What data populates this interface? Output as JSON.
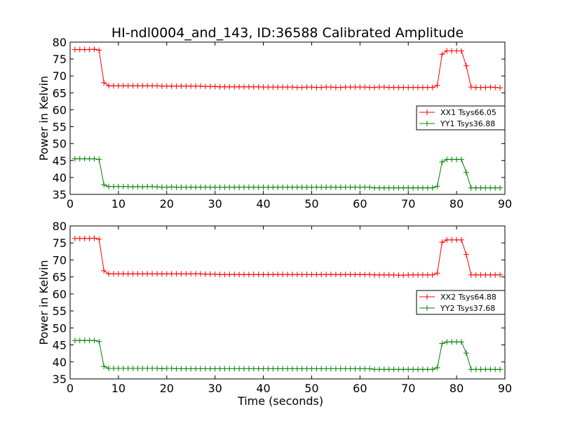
{
  "chart_data": {
    "title": "HI-ndl0004_and_143, ID:36588 Calibrated Amplitude",
    "charts": [
      {
        "type": "line",
        "ylabel": "Power in Kelvin",
        "xlabel": "",
        "xlim": [
          0,
          90
        ],
        "ylim": [
          35,
          80
        ],
        "xticks": [
          0,
          10,
          20,
          30,
          40,
          50,
          60,
          70,
          80,
          90
        ],
        "yticks": [
          35,
          40,
          45,
          50,
          55,
          60,
          65,
          70,
          75,
          80
        ],
        "grid": false,
        "legend": "center-right",
        "series": [
          {
            "name": "XX1 Tsys66.05",
            "color": "#ff0000",
            "x": [
              1,
              2,
              3,
              4,
              5,
              6,
              7,
              8,
              9,
              10,
              11,
              12,
              13,
              14,
              15,
              16,
              17,
              18,
              19,
              20,
              21,
              22,
              23,
              24,
              25,
              26,
              27,
              28,
              29,
              30,
              31,
              32,
              33,
              34,
              35,
              36,
              37,
              38,
              39,
              40,
              41,
              42,
              43,
              44,
              45,
              46,
              47,
              48,
              49,
              50,
              51,
              52,
              53,
              54,
              55,
              56,
              57,
              58,
              59,
              60,
              61,
              62,
              63,
              64,
              65,
              66,
              67,
              68,
              69,
              70,
              71,
              72,
              73,
              74,
              75,
              76,
              77,
              78,
              79,
              80,
              81,
              82,
              83,
              84,
              85,
              86,
              87,
              88,
              89
            ],
            "y": [
              77.8,
              77.8,
              77.8,
              77.8,
              77.9,
              77.6,
              68.0,
              67.1,
              67.1,
              67.1,
              67.1,
              67.1,
              67.1,
              67.1,
              67.1,
              67.1,
              67.1,
              67.1,
              67.0,
              67.0,
              67.0,
              67.0,
              67.0,
              67.0,
              67.0,
              67.0,
              67.0,
              66.9,
              66.9,
              66.9,
              66.8,
              66.8,
              66.8,
              66.8,
              66.8,
              66.8,
              66.8,
              66.8,
              66.8,
              66.7,
              66.7,
              66.7,
              66.7,
              66.7,
              66.7,
              66.7,
              66.6,
              66.6,
              66.7,
              66.7,
              66.6,
              66.6,
              66.7,
              66.7,
              66.6,
              66.6,
              66.7,
              66.7,
              66.7,
              66.7,
              66.7,
              66.6,
              66.6,
              66.7,
              66.7,
              66.6,
              66.6,
              66.6,
              66.6,
              66.6,
              66.6,
              66.6,
              66.6,
              66.6,
              66.6,
              67.2,
              76.4,
              77.4,
              77.4,
              77.4,
              77.4,
              73.0,
              66.7,
              66.6,
              66.6,
              66.6,
              66.7,
              66.6,
              66.5
            ]
          },
          {
            "name": "YY1 Tsys36.88",
            "color": "#008000",
            "x": [
              1,
              2,
              3,
              4,
              5,
              6,
              7,
              8,
              9,
              10,
              11,
              12,
              13,
              14,
              15,
              16,
              17,
              18,
              19,
              20,
              21,
              22,
              23,
              24,
              25,
              26,
              27,
              28,
              29,
              30,
              31,
              32,
              33,
              34,
              35,
              36,
              37,
              38,
              39,
              40,
              41,
              42,
              43,
              44,
              45,
              46,
              47,
              48,
              49,
              50,
              51,
              52,
              53,
              54,
              55,
              56,
              57,
              58,
              59,
              60,
              61,
              62,
              63,
              64,
              65,
              66,
              67,
              68,
              69,
              70,
              71,
              72,
              73,
              74,
              75,
              76,
              77,
              78,
              79,
              80,
              81,
              82,
              83,
              84,
              85,
              86,
              87,
              88,
              89
            ],
            "y": [
              45.5,
              45.5,
              45.5,
              45.5,
              45.5,
              45.3,
              37.8,
              37.3,
              37.3,
              37.3,
              37.3,
              37.3,
              37.2,
              37.3,
              37.2,
              37.3,
              37.3,
              37.2,
              37.1,
              37.1,
              37.2,
              37.1,
              37.1,
              37.1,
              37.1,
              37.1,
              37.1,
              37.1,
              37.1,
              37.1,
              37.1,
              37.1,
              37.1,
              37.1,
              37.1,
              37.1,
              37.1,
              37.1,
              37.1,
              37.1,
              37.1,
              37.1,
              37.1,
              37.1,
              37.1,
              37.1,
              37.1,
              37.1,
              37.1,
              37.1,
              37.1,
              37.1,
              37.1,
              37.1,
              37.1,
              37.1,
              37.1,
              37.1,
              37.1,
              37.1,
              37.1,
              37.1,
              36.9,
              36.9,
              36.9,
              36.9,
              36.9,
              36.9,
              36.9,
              36.9,
              36.9,
              36.9,
              36.9,
              36.9,
              36.9,
              37.4,
              44.6,
              45.3,
              45.3,
              45.3,
              45.3,
              41.5,
              36.9,
              36.9,
              36.9,
              36.9,
              36.9,
              36.9,
              36.9
            ]
          }
        ]
      },
      {
        "type": "line",
        "ylabel": "Power in Kelvin",
        "xlabel": "Time (seconds)",
        "xlim": [
          0,
          90
        ],
        "ylim": [
          35,
          80
        ],
        "xticks": [
          0,
          10,
          20,
          30,
          40,
          50,
          60,
          70,
          80,
          90
        ],
        "yticks": [
          35,
          40,
          45,
          50,
          55,
          60,
          65,
          70,
          75,
          80
        ],
        "grid": false,
        "legend": "center-right",
        "series": [
          {
            "name": "XX2 Tsys64.88",
            "color": "#ff0000",
            "x": [
              1,
              2,
              3,
              4,
              5,
              6,
              7,
              8,
              9,
              10,
              11,
              12,
              13,
              14,
              15,
              16,
              17,
              18,
              19,
              20,
              21,
              22,
              23,
              24,
              25,
              26,
              27,
              28,
              29,
              30,
              31,
              32,
              33,
              34,
              35,
              36,
              37,
              38,
              39,
              40,
              41,
              42,
              43,
              44,
              45,
              46,
              47,
              48,
              49,
              50,
              51,
              52,
              53,
              54,
              55,
              56,
              57,
              58,
              59,
              60,
              61,
              62,
              63,
              64,
              65,
              66,
              67,
              68,
              69,
              70,
              71,
              72,
              73,
              74,
              75,
              76,
              77,
              78,
              79,
              80,
              81,
              82,
              83,
              84,
              85,
              86,
              87,
              88,
              89
            ],
            "y": [
              76.3,
              76.3,
              76.3,
              76.3,
              76.4,
              76.1,
              66.8,
              65.9,
              65.9,
              65.9,
              65.9,
              65.9,
              65.9,
              65.9,
              65.9,
              65.9,
              65.9,
              65.9,
              65.9,
              65.9,
              65.9,
              65.9,
              65.9,
              65.9,
              65.9,
              65.9,
              65.9,
              65.8,
              65.8,
              65.8,
              65.7,
              65.7,
              65.7,
              65.7,
              65.7,
              65.7,
              65.7,
              65.7,
              65.7,
              65.7,
              65.7,
              65.7,
              65.7,
              65.7,
              65.7,
              65.7,
              65.7,
              65.7,
              65.7,
              65.7,
              65.7,
              65.7,
              65.7,
              65.7,
              65.7,
              65.7,
              65.7,
              65.7,
              65.7,
              65.7,
              65.7,
              65.7,
              65.6,
              65.6,
              65.6,
              65.6,
              65.6,
              65.5,
              65.5,
              65.6,
              65.6,
              65.6,
              65.6,
              65.6,
              65.6,
              66.1,
              75.2,
              75.9,
              75.9,
              75.9,
              75.9,
              71.6,
              65.6,
              65.6,
              65.6,
              65.6,
              65.6,
              65.6,
              65.6
            ]
          },
          {
            "name": "YY2 Tsys37.68",
            "color": "#008000",
            "x": [
              1,
              2,
              3,
              4,
              5,
              6,
              7,
              8,
              9,
              10,
              11,
              12,
              13,
              14,
              15,
              16,
              17,
              18,
              19,
              20,
              21,
              22,
              23,
              24,
              25,
              26,
              27,
              28,
              29,
              30,
              31,
              32,
              33,
              34,
              35,
              36,
              37,
              38,
              39,
              40,
              41,
              42,
              43,
              44,
              45,
              46,
              47,
              48,
              49,
              50,
              51,
              52,
              53,
              54,
              55,
              56,
              57,
              58,
              59,
              60,
              61,
              62,
              63,
              64,
              65,
              66,
              67,
              68,
              69,
              70,
              71,
              72,
              73,
              74,
              75,
              76,
              77,
              78,
              79,
              80,
              81,
              82,
              83,
              84,
              85,
              86,
              87,
              88,
              89
            ],
            "y": [
              46.3,
              46.3,
              46.3,
              46.3,
              46.3,
              46.0,
              38.7,
              38.1,
              38.1,
              38.1,
              38.1,
              38.1,
              38.1,
              38.1,
              38.1,
              38.1,
              38.1,
              38.1,
              38.0,
              38.1,
              38.1,
              38.0,
              38.0,
              38.0,
              38.0,
              38.0,
              38.0,
              38.0,
              38.0,
              38.0,
              38.0,
              38.0,
              38.0,
              38.0,
              38.0,
              38.0,
              38.0,
              38.0,
              38.0,
              38.0,
              38.0,
              38.0,
              38.0,
              38.0,
              38.0,
              38.0,
              38.0,
              38.0,
              38.0,
              38.0,
              38.0,
              38.0,
              38.0,
              38.0,
              38.0,
              38.0,
              38.0,
              38.0,
              38.0,
              38.0,
              38.0,
              38.0,
              37.8,
              37.8,
              37.8,
              37.8,
              37.8,
              37.8,
              37.8,
              37.8,
              37.8,
              37.8,
              37.8,
              37.8,
              37.8,
              38.3,
              45.4,
              45.9,
              45.9,
              45.9,
              45.9,
              42.6,
              37.8,
              37.8,
              37.8,
              37.8,
              37.8,
              37.8,
              37.8
            ]
          }
        ]
      }
    ]
  }
}
